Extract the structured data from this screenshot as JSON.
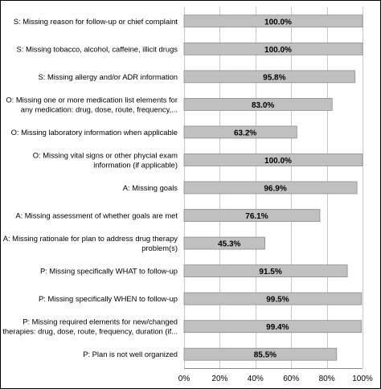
{
  "chart_data": {
    "type": "bar",
    "orientation": "horizontal",
    "categories": [
      "S: Missing reason for follow-up or chief complaint",
      "S: Missing tobacco, alcohol, caffeine, illicit drugs",
      "S: Missing allergy and/or ADR information",
      "O: Missing one or more medication list elements for any medication: drug, dose, route, frequency,...",
      "O: Missing laboratory information when applicable",
      "O: Missing vital signs or other physcial exam information (if applicable)",
      "A: Missing goals",
      "A: Missing assessment of whether goals are met",
      "A: Missing rationale for plan to address drug therapy problem(s)",
      "P: Missing specifically WHAT to follow-up",
      "P: Missing specifically WHEN to follow-up",
      "P: Missing required elements for new/changed therapies: drug, dose, route, frequency, duration (if...",
      "P: Plan is not well organized"
    ],
    "category_lines": [
      [
        "S: Missing reason for follow-up or chief complaint"
      ],
      [
        "S: Missing tobacco, alcohol, caffeine, illicit drugs"
      ],
      [
        "S: Missing allergy and/or ADR information"
      ],
      [
        "O: Missing one or more medication list elements for",
        "any medication: drug, dose, route, frequency,..."
      ],
      [
        "O: Missing laboratory information when applicable"
      ],
      [
        "O: Missing vital signs or other phycial exam",
        "information (if applicable)"
      ],
      [
        "A: Missing goals"
      ],
      [
        "A: Missing assessment of whether goals are met"
      ],
      [
        "A: Missing rationale for plan to address drug therapy",
        "problem(s)"
      ],
      [
        "P: Missing specifically WHAT to follow-up"
      ],
      [
        "P: Missing specifically WHEN to follow-up"
      ],
      [
        "P: Missing required elements for new/changed",
        "therapies: drug, dose, route, frequency, duration (if..."
      ],
      [
        "P: Plan is not well organized"
      ]
    ],
    "values": [
      100.0,
      100.0,
      95.8,
      83.0,
      63.2,
      100.0,
      96.9,
      76.1,
      45.3,
      91.5,
      99.5,
      99.4,
      85.5
    ],
    "value_labels": [
      "100.0%",
      "100.0%",
      "95.8%",
      "83.0%",
      "63.2%",
      "100.0%",
      "96.9%",
      "76.1%",
      "45.3%",
      "91.5%",
      "99.5%",
      "99.4%",
      "85.5%"
    ],
    "xlim": [
      0,
      100
    ],
    "xticks": [
      0,
      20,
      40,
      60,
      80,
      100
    ],
    "xtick_labels": [
      "0%",
      "20%",
      "40%",
      "60%",
      "80%",
      "100%"
    ],
    "grid": true,
    "legend": "none",
    "bar_color": "#c0c0c0",
    "bar_edge_color": "#8c8c8c",
    "grid_color": "#c8c8c8",
    "title": "",
    "xlabel": "",
    "ylabel": ""
  }
}
